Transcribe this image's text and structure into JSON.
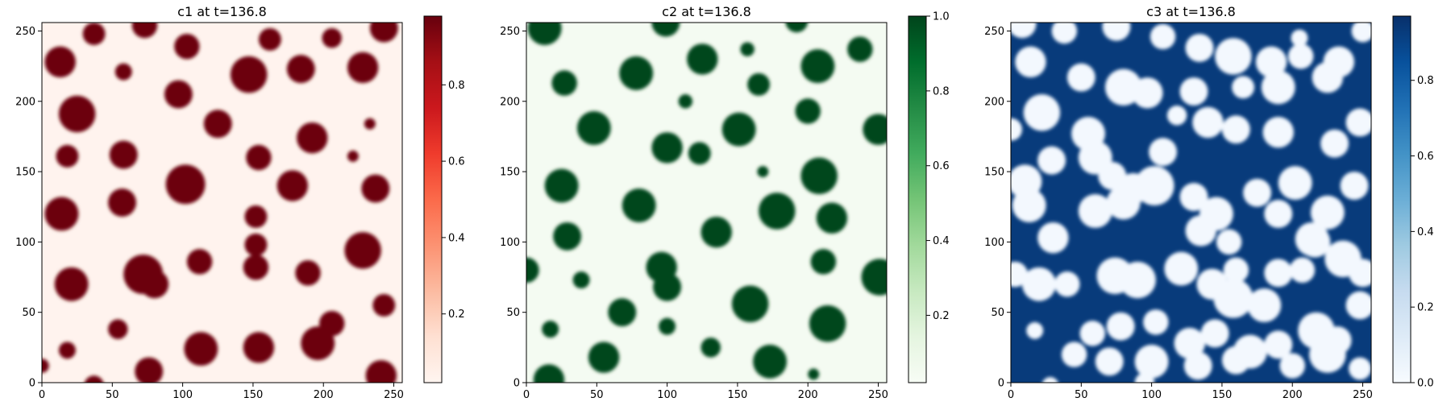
{
  "figure": {
    "panels": [
      {
        "title": "c1 at t=136.8",
        "colormap": "Reds",
        "colors": [
          "#fff5f0",
          "#fee0d2",
          "#fcbba1",
          "#fc9272",
          "#fb6a4a",
          "#ef3b2c",
          "#cb181d",
          "#a50f15",
          "#67000d"
        ],
        "background_value": 0.03,
        "droplet_value": 0.97,
        "xticks": [
          "0",
          "50",
          "100",
          "150",
          "200",
          "250"
        ],
        "yticks": [
          "0",
          "50",
          "100",
          "150",
          "200",
          "250"
        ],
        "colorbar_min": 0.02,
        "colorbar_max": 0.98,
        "colorbar_ticks": [
          {
            "v": 0.2,
            "label": "0.2"
          },
          {
            "v": 0.4,
            "label": "0.4"
          },
          {
            "v": 0.6,
            "label": "0.6"
          },
          {
            "v": 0.8,
            "label": "0.8"
          }
        ]
      },
      {
        "title": "c2 at t=136.8",
        "colormap": "Greens",
        "colors": [
          "#f7fcf5",
          "#e5f5e0",
          "#c7e9c0",
          "#a1d99b",
          "#74c476",
          "#41ab5d",
          "#238b45",
          "#006d2c",
          "#00441b"
        ],
        "background_value": 0.04,
        "droplet_value": 0.99,
        "xticks": [
          "0",
          "50",
          "100",
          "150",
          "200",
          "250"
        ],
        "yticks": [
          "0",
          "50",
          "100",
          "150",
          "200",
          "250"
        ],
        "colorbar_min": 0.02,
        "colorbar_max": 1.0,
        "colorbar_ticks": [
          {
            "v": 0.2,
            "label": "0.2"
          },
          {
            "v": 0.4,
            "label": "0.4"
          },
          {
            "v": 0.6,
            "label": "0.6"
          },
          {
            "v": 0.8,
            "label": "0.8"
          },
          {
            "v": 1.0,
            "label": "1.0"
          }
        ]
      },
      {
        "title": "c3 at t=136.8",
        "colormap": "Blues",
        "colors": [
          "#f7fbff",
          "#deebf7",
          "#c6dbef",
          "#9ecae1",
          "#6baed6",
          "#4292c6",
          "#2171b5",
          "#08519c",
          "#08306b"
        ],
        "background_value": 0.93,
        "droplet_value": 0.02,
        "xticks": [
          "0",
          "50",
          "100",
          "150",
          "200",
          "250"
        ],
        "yticks": [
          "0",
          "50",
          "100",
          "150",
          "200",
          "250"
        ],
        "colorbar_min": 0.0,
        "colorbar_max": 0.97,
        "colorbar_ticks": [
          {
            "v": 0.0,
            "label": "0.0"
          },
          {
            "v": 0.2,
            "label": "0.2"
          },
          {
            "v": 0.4,
            "label": "0.4"
          },
          {
            "v": 0.6,
            "label": "0.6"
          },
          {
            "v": 0.8,
            "label": "0.8"
          }
        ]
      }
    ]
  },
  "chart_data": [
    {
      "type": "heatmap",
      "title": "c1 at t=136.8",
      "xlim": [
        0,
        256
      ],
      "ylim": [
        0,
        256
      ],
      "colorbar_range": [
        0.02,
        0.98
      ],
      "droplets": [
        [
          37,
          248,
          8
        ],
        [
          73,
          254,
          9
        ],
        [
          103,
          239,
          9
        ],
        [
          162,
          244,
          8
        ],
        [
          206,
          245,
          7
        ],
        [
          243,
          252,
          10
        ],
        [
          13,
          228,
          11
        ],
        [
          58,
          221,
          6
        ],
        [
          97,
          205,
          10
        ],
        [
          147,
          219,
          13
        ],
        [
          184,
          223,
          10
        ],
        [
          228,
          224,
          11
        ],
        [
          25,
          191,
          13
        ],
        [
          125,
          184,
          10
        ],
        [
          233,
          184,
          4
        ],
        [
          18,
          161,
          8
        ],
        [
          58,
          162,
          10
        ],
        [
          154,
          160,
          9
        ],
        [
          192,
          174,
          11
        ],
        [
          221,
          161,
          4
        ],
        [
          102,
          141,
          14
        ],
        [
          178,
          140,
          11
        ],
        [
          237,
          138,
          10
        ],
        [
          14,
          120,
          12
        ],
        [
          57,
          128,
          10
        ],
        [
          152,
          118,
          8
        ],
        [
          152,
          98,
          8
        ],
        [
          152,
          82,
          9
        ],
        [
          228,
          94,
          13
        ],
        [
          112,
          86,
          9
        ],
        [
          72,
          77,
          14
        ],
        [
          80,
          70,
          10
        ],
        [
          21,
          70,
          12
        ],
        [
          189,
          78,
          9
        ],
        [
          243,
          55,
          8
        ],
        [
          54,
          38,
          7
        ],
        [
          18,
          23,
          6
        ],
        [
          113,
          24,
          12
        ],
        [
          154,
          25,
          11
        ],
        [
          196,
          28,
          12
        ],
        [
          206,
          42,
          9
        ],
        [
          76,
          8,
          10
        ],
        [
          241,
          5,
          11
        ],
        [
          37,
          -2,
          7
        ],
        [
          0,
          12,
          5
        ]
      ]
    },
    {
      "type": "heatmap",
      "title": "c2 at t=136.8",
      "xlim": [
        0,
        256
      ],
      "ylim": [
        0,
        256
      ],
      "colorbar_range": [
        0.02,
        1.0
      ],
      "droplets": [
        [
          13,
          252,
          12
        ],
        [
          99,
          256,
          10
        ],
        [
          192,
          257,
          8
        ],
        [
          27,
          213,
          9
        ],
        [
          78,
          220,
          12
        ],
        [
          125,
          230,
          11
        ],
        [
          157,
          237,
          5
        ],
        [
          207,
          225,
          12
        ],
        [
          237,
          237,
          9
        ],
        [
          113,
          200,
          5
        ],
        [
          165,
          212,
          8
        ],
        [
          200,
          193,
          9
        ],
        [
          48,
          181,
          12
        ],
        [
          100,
          167,
          11
        ],
        [
          123,
          163,
          8
        ],
        [
          151,
          180,
          12
        ],
        [
          250,
          180,
          11
        ],
        [
          25,
          140,
          12
        ],
        [
          168,
          150,
          4
        ],
        [
          208,
          147,
          13
        ],
        [
          80,
          126,
          12
        ],
        [
          178,
          122,
          13
        ],
        [
          217,
          117,
          11
        ],
        [
          29,
          104,
          10
        ],
        [
          0,
          80,
          9
        ],
        [
          135,
          107,
          11
        ],
        [
          96,
          82,
          11
        ],
        [
          100,
          68,
          10
        ],
        [
          211,
          86,
          9
        ],
        [
          39,
          73,
          6
        ],
        [
          68,
          50,
          10
        ],
        [
          159,
          56,
          13
        ],
        [
          214,
          42,
          13
        ],
        [
          251,
          75,
          13
        ],
        [
          17,
          38,
          6
        ],
        [
          100,
          40,
          6
        ],
        [
          131,
          25,
          7
        ],
        [
          55,
          18,
          11
        ],
        [
          173,
          15,
          12
        ],
        [
          204,
          6,
          4
        ],
        [
          16,
          2,
          11
        ]
      ]
    },
    {
      "type": "heatmap",
      "title": "c3 at t=136.8",
      "xlim": [
        0,
        256
      ],
      "ylim": [
        0,
        256
      ],
      "colorbar_range": [
        0.0,
        0.97
      ],
      "droplets": [
        [
          8,
          255,
          10
        ],
        [
          38,
          250,
          9
        ],
        [
          75,
          253,
          10
        ],
        [
          108,
          246,
          9
        ],
        [
          134,
          238,
          10
        ],
        [
          158,
          232,
          13
        ],
        [
          185,
          228,
          11
        ],
        [
          206,
          232,
          9
        ],
        [
          233,
          228,
          11
        ],
        [
          250,
          250,
          8
        ],
        [
          205,
          245,
          6
        ],
        [
          14,
          228,
          11
        ],
        [
          50,
          217,
          10
        ],
        [
          80,
          210,
          13
        ],
        [
          97,
          206,
          11
        ],
        [
          130,
          207,
          10
        ],
        [
          165,
          210,
          8
        ],
        [
          190,
          210,
          12
        ],
        [
          225,
          217,
          11
        ],
        [
          22,
          192,
          13
        ],
        [
          55,
          177,
          12
        ],
        [
          108,
          164,
          10
        ],
        [
          118,
          190,
          7
        ],
        [
          140,
          185,
          11
        ],
        [
          160,
          180,
          10
        ],
        [
          190,
          178,
          11
        ],
        [
          230,
          170,
          10
        ],
        [
          248,
          185,
          10
        ],
        [
          0,
          180,
          8
        ],
        [
          29,
          158,
          10
        ],
        [
          60,
          160,
          12
        ],
        [
          72,
          147,
          10
        ],
        [
          10,
          143,
          12
        ],
        [
          87,
          138,
          11
        ],
        [
          102,
          140,
          14
        ],
        [
          130,
          132,
          10
        ],
        [
          146,
          120,
          12
        ],
        [
          155,
          100,
          9
        ],
        [
          160,
          80,
          9
        ],
        [
          175,
          135,
          10
        ],
        [
          202,
          142,
          12
        ],
        [
          244,
          140,
          10
        ],
        [
          225,
          121,
          12
        ],
        [
          60,
          122,
          12
        ],
        [
          80,
          128,
          12
        ],
        [
          13,
          126,
          12
        ],
        [
          30,
          103,
          11
        ],
        [
          135,
          108,
          11
        ],
        [
          190,
          120,
          10
        ],
        [
          216,
          100,
          11
        ],
        [
          214,
          102,
          12
        ],
        [
          236,
          88,
          13
        ],
        [
          190,
          78,
          10
        ],
        [
          207,
          80,
          9
        ],
        [
          3,
          77,
          9
        ],
        [
          20,
          70,
          12
        ],
        [
          40,
          70,
          9
        ],
        [
          74,
          76,
          13
        ],
        [
          90,
          73,
          13
        ],
        [
          121,
          81,
          12
        ],
        [
          143,
          70,
          11
        ],
        [
          158,
          60,
          14
        ],
        [
          180,
          55,
          12
        ],
        [
          248,
          55,
          10
        ],
        [
          250,
          78,
          10
        ],
        [
          17,
          37,
          6
        ],
        [
          58,
          35,
          9
        ],
        [
          78,
          40,
          10
        ],
        [
          103,
          43,
          9
        ],
        [
          127,
          28,
          11
        ],
        [
          145,
          35,
          10
        ],
        [
          170,
          22,
          12
        ],
        [
          190,
          27,
          10
        ],
        [
          217,
          37,
          13
        ],
        [
          232,
          30,
          10
        ],
        [
          45,
          20,
          9
        ],
        [
          70,
          15,
          10
        ],
        [
          100,
          15,
          12
        ],
        [
          133,
          12,
          10
        ],
        [
          160,
          16,
          10
        ],
        [
          200,
          12,
          9
        ],
        [
          225,
          20,
          13
        ],
        [
          248,
          10,
          8
        ],
        [
          28,
          -2,
          6
        ],
        [
          95,
          0,
          7
        ]
      ]
    }
  ]
}
